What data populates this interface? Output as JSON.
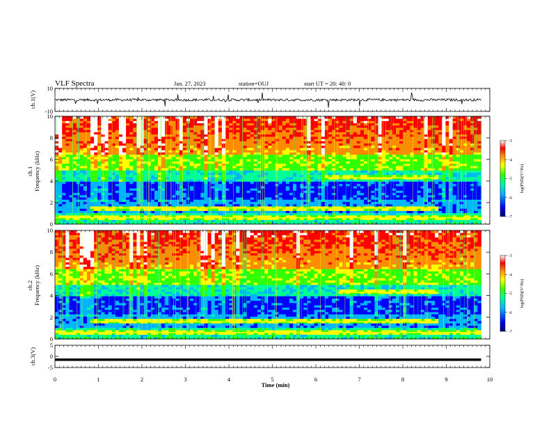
{
  "header": {
    "title": "VLF Spectra",
    "date": "Jan. 27, 2023",
    "station": "station=OUJ",
    "start": "start UT =  20: 40: 0"
  },
  "chart_data": [
    {
      "type": "line",
      "panel": "ch1-waveform",
      "ylabel": "ch.1(V)",
      "ylim": [
        -10,
        10
      ],
      "yticks": [
        "10",
        "-10"
      ],
      "baseline": 0
    },
    {
      "type": "heatmap",
      "panel": "ch1-spectrogram",
      "ylabel_top": "ch.1",
      "ylabel": "Frequency (kHz)",
      "ylim": [
        0,
        10
      ],
      "yticks": [
        "0",
        "2",
        "4",
        "6",
        "8",
        "10"
      ],
      "colorbar": {
        "label": "log(PSD)(V²/Hz)",
        "range": [
          -7,
          -3
        ],
        "ticks": [
          "-3",
          "-4",
          "-5",
          "-6",
          "-7"
        ]
      },
      "bands": [
        {
          "freq_khz": 1.5,
          "t_start_min": 0.8,
          "t_end_min": 8.8
        },
        {
          "freq_khz": 4.3,
          "t_start_min": 6.2,
          "t_end_min": 8.8
        },
        {
          "freq_khz": 0.6,
          "t_start_min": 0.0,
          "t_end_min": 9.8
        }
      ]
    },
    {
      "type": "heatmap",
      "panel": "ch2-spectrogram",
      "ylabel_top": "ch.2",
      "ylabel": "Frequency (kHz)",
      "ylim": [
        0,
        10
      ],
      "yticks": [
        "0",
        "2",
        "4",
        "6",
        "8",
        "10"
      ],
      "colorbar": {
        "label": "log(PSD)(V²/Hz)",
        "range": [
          -7,
          -3
        ],
        "ticks": [
          "-3",
          "-4",
          "-5",
          "-6",
          "-7"
        ]
      },
      "bands": [
        {
          "freq_khz": 1.6,
          "t_start_min": 0.8,
          "t_end_min": 8.8
        },
        {
          "freq_khz": 4.3,
          "t_start_min": 6.5,
          "t_end_min": 8.8
        },
        {
          "freq_khz": 0.6,
          "t_start_min": 0.0,
          "t_end_min": 9.8
        }
      ]
    },
    {
      "type": "line",
      "panel": "ch3-waveform",
      "ylabel": "ch.3(V)",
      "ylim": [
        -5,
        5
      ],
      "yticks": [
        "5",
        "0",
        "-5"
      ],
      "baseline": -1.5
    }
  ],
  "xaxis": {
    "label": "Time (min)",
    "range": [
      0,
      10
    ],
    "ticks": [
      "0",
      "1",
      "2",
      "3",
      "4",
      "5",
      "6",
      "7",
      "8",
      "9",
      "10"
    ],
    "data_end_min": 9.8
  },
  "colormap": [
    "#000070",
    "#0000ff",
    "#00b4ff",
    "#00ff96",
    "#32ff00",
    "#ffff00",
    "#ff8c00",
    "#ff0000",
    "#ffffff"
  ]
}
